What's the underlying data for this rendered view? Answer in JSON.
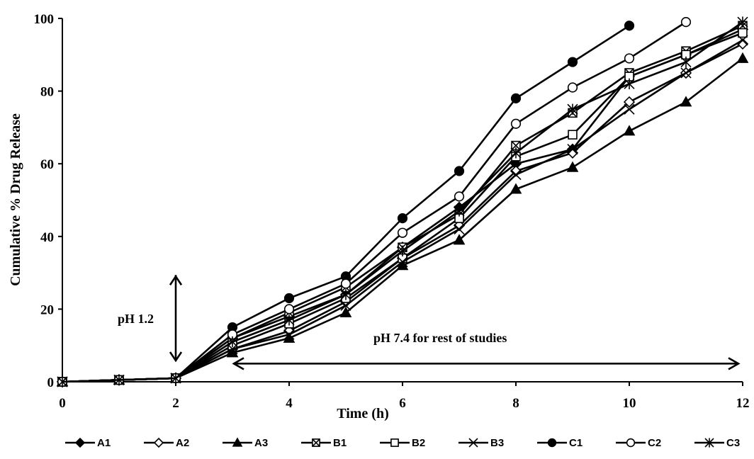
{
  "chart_data": {
    "type": "line",
    "title": "",
    "xlabel": "Time (h)",
    "ylabel": "Cumulative % Drug Release",
    "xlim": [
      0,
      12
    ],
    "ylim": [
      0,
      100
    ],
    "xticks": [
      0,
      2,
      4,
      6,
      8,
      10,
      12
    ],
    "yticks": [
      0,
      20,
      40,
      60,
      80,
      100
    ],
    "grid": false,
    "legend_position": "bottom",
    "series": [
      {
        "name": "A1",
        "marker": "filled-diamond",
        "x": [
          0,
          1,
          2,
          3,
          4,
          5,
          6,
          7,
          8,
          9,
          10,
          11,
          12
        ],
        "y": [
          0,
          0.5,
          1,
          12,
          18,
          24,
          37,
          48,
          60,
          64,
          84,
          90,
          97
        ]
      },
      {
        "name": "A2",
        "marker": "open-diamond",
        "x": [
          0,
          1,
          2,
          3,
          4,
          5,
          6,
          7,
          8,
          9,
          10,
          11,
          12
        ],
        "y": [
          0,
          0.5,
          1,
          9,
          14,
          22,
          34,
          43,
          58,
          63,
          77,
          85,
          93
        ]
      },
      {
        "name": "A3",
        "marker": "filled-triangle",
        "x": [
          0,
          1,
          2,
          3,
          4,
          5,
          6,
          7,
          8,
          9,
          10,
          11,
          12
        ],
        "y": [
          0,
          0.5,
          1,
          8,
          12,
          19,
          32,
          39,
          53,
          59,
          69,
          77,
          89
        ]
      },
      {
        "name": "B1",
        "marker": "boxed-x",
        "x": [
          0,
          1,
          2,
          3,
          4,
          5,
          6,
          7,
          8,
          9,
          10,
          11,
          12
        ],
        "y": [
          0,
          0.5,
          1,
          12,
          19,
          26,
          37,
          46,
          65,
          74,
          85,
          91,
          98
        ]
      },
      {
        "name": "B2",
        "marker": "open-square",
        "x": [
          0,
          1,
          2,
          3,
          4,
          5,
          6,
          7,
          8,
          9,
          10,
          11,
          12
        ],
        "y": [
          0,
          0.5,
          1,
          10,
          16,
          23,
          34,
          45,
          62,
          68,
          84,
          90,
          96
        ]
      },
      {
        "name": "B3",
        "marker": "x",
        "x": [
          0,
          1,
          2,
          3,
          4,
          5,
          6,
          7,
          8,
          9,
          10,
          11,
          12
        ],
        "y": [
          0,
          0.5,
          1,
          9,
          13,
          21,
          33,
          42,
          57,
          64,
          75,
          85,
          94
        ]
      },
      {
        "name": "C1",
        "marker": "filled-circle",
        "x": [
          0,
          1,
          2,
          3,
          4,
          5,
          6,
          7,
          8,
          9,
          10
        ],
        "y": [
          0,
          0.5,
          1,
          15,
          23,
          29,
          45,
          58,
          78,
          88,
          98
        ]
      },
      {
        "name": "C2",
        "marker": "open-circle",
        "x": [
          0,
          1,
          2,
          3,
          4,
          5,
          6,
          7,
          8,
          9,
          10,
          11
        ],
        "y": [
          0,
          0.5,
          1,
          13,
          20,
          27,
          41,
          51,
          71,
          81,
          89,
          99
        ]
      },
      {
        "name": "C3",
        "marker": "star",
        "x": [
          0,
          1,
          2,
          3,
          4,
          5,
          6,
          7,
          8,
          9,
          10,
          11,
          12
        ],
        "y": [
          0,
          0.5,
          1,
          11,
          17,
          24,
          36,
          47,
          63,
          75,
          82,
          88,
          99
        ]
      }
    ],
    "annotations": [
      {
        "text": "pH 1.2",
        "arrow": "vertical-double",
        "x": 2,
        "y_from": 0,
        "y_to": 29
      },
      {
        "text": "pH 7.4 for rest of studies",
        "arrow": "horizontal-double",
        "y": 5,
        "x_from": 3,
        "x_to": 12
      }
    ]
  }
}
